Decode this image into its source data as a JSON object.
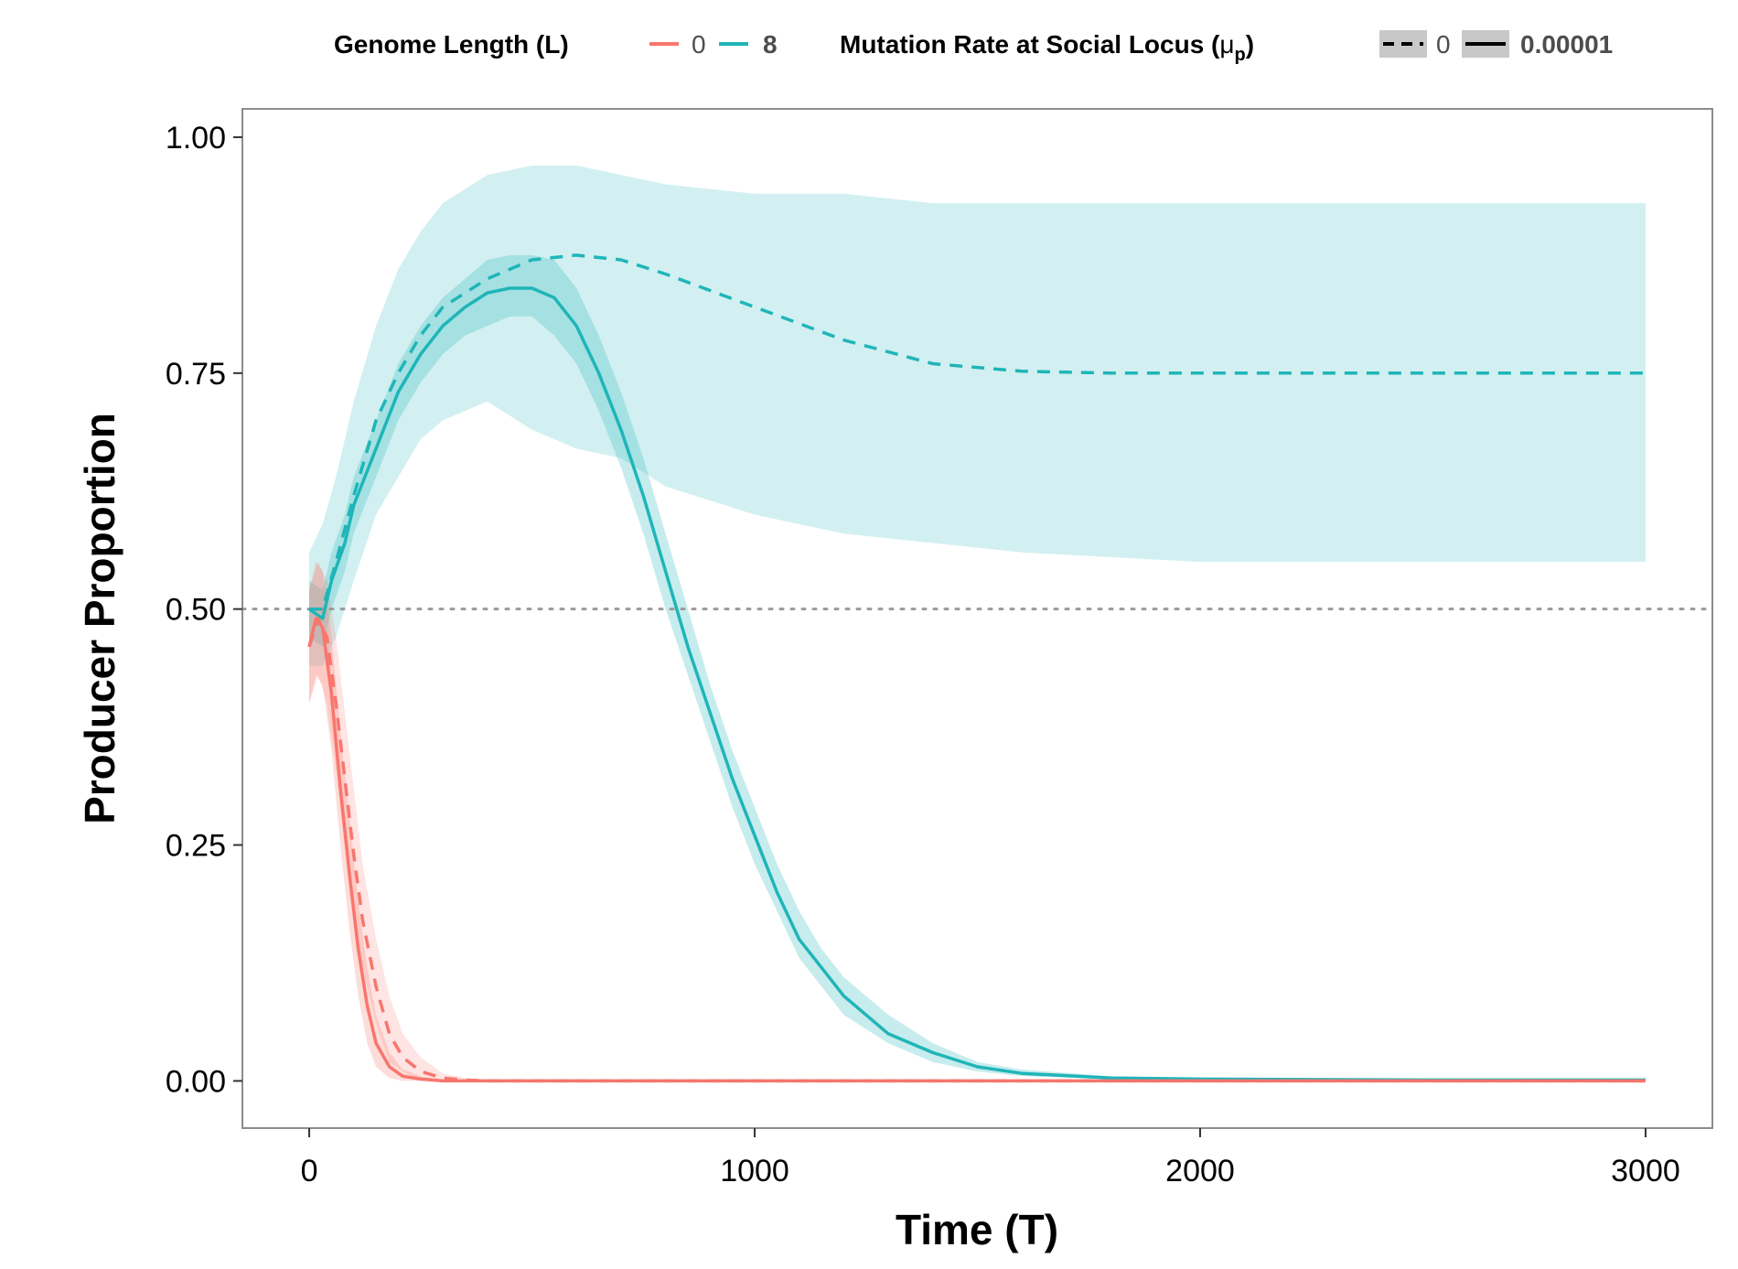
{
  "legend": {
    "genome_title": "Genome Length (L)",
    "genome_items": [
      {
        "label": "0",
        "color": "#F8766D"
      },
      {
        "label": "8",
        "color": "#1FB5B8"
      }
    ],
    "mutation_title": "Mutation Rate at Social Locus (",
    "mutation_title_mu": "μ",
    "mutation_title_sub": "p",
    "mutation_title_close": ")",
    "mutation_items": [
      {
        "label": "0",
        "linetype": "dashed"
      },
      {
        "label": "0.00001",
        "linetype": "solid"
      }
    ]
  },
  "chart_data": {
    "type": "line",
    "xlabel": "Time (T)",
    "ylabel": "Producer Proportion",
    "xlim": [
      -150,
      3150
    ],
    "ylim": [
      -0.05,
      1.03
    ],
    "x_ticks": [
      0,
      1000,
      2000,
      3000
    ],
    "x_tick_labels": [
      "0",
      "1000",
      "2000",
      "3000"
    ],
    "y_ticks": [
      0,
      0.25,
      0.5,
      0.75,
      1.0
    ],
    "y_tick_labels": [
      "0.00",
      "0.25",
      "0.50",
      "0.75",
      "1.00"
    ],
    "reference_line": {
      "y": 0.5,
      "style": "dotted",
      "color": "#999999"
    },
    "grid": false,
    "colors": {
      "L0": "#F8766D",
      "L8": "#1FB5B8",
      "band_L0": "#F8766D",
      "band_L8": "#1FB5B8"
    },
    "series": [
      {
        "genome_length": "8",
        "mutation_rate": "0",
        "linetype": "dashed",
        "color": "#1FB5B8",
        "x": [
          0,
          30,
          60,
          100,
          150,
          200,
          250,
          300,
          400,
          500,
          600,
          700,
          800,
          1000,
          1200,
          1400,
          1600,
          1800,
          2000,
          2500,
          3000
        ],
        "y": [
          0.5,
          0.5,
          0.55,
          0.62,
          0.7,
          0.75,
          0.79,
          0.82,
          0.85,
          0.87,
          0.875,
          0.87,
          0.855,
          0.82,
          0.785,
          0.76,
          0.752,
          0.75,
          0.75,
          0.75,
          0.75
        ],
        "lower": [
          0.44,
          0.44,
          0.47,
          0.53,
          0.6,
          0.64,
          0.68,
          0.7,
          0.72,
          0.69,
          0.67,
          0.66,
          0.63,
          0.6,
          0.58,
          0.57,
          0.56,
          0.555,
          0.55,
          0.55,
          0.55
        ],
        "upper": [
          0.56,
          0.59,
          0.64,
          0.72,
          0.8,
          0.86,
          0.9,
          0.93,
          0.96,
          0.97,
          0.97,
          0.96,
          0.95,
          0.94,
          0.94,
          0.93,
          0.93,
          0.93,
          0.93,
          0.93,
          0.93
        ]
      },
      {
        "genome_length": "8",
        "mutation_rate": "0.00001",
        "linetype": "solid",
        "color": "#1FB5B8",
        "x": [
          0,
          30,
          50,
          80,
          100,
          150,
          200,
          250,
          300,
          350,
          400,
          450,
          500,
          550,
          600,
          650,
          700,
          750,
          800,
          850,
          900,
          950,
          1000,
          1050,
          1100,
          1150,
          1200,
          1300,
          1400,
          1500,
          1600,
          1800,
          2000,
          2500,
          3000
        ],
        "y": [
          0.5,
          0.49,
          0.53,
          0.57,
          0.61,
          0.67,
          0.73,
          0.77,
          0.8,
          0.82,
          0.835,
          0.84,
          0.84,
          0.83,
          0.8,
          0.75,
          0.69,
          0.62,
          0.54,
          0.46,
          0.39,
          0.32,
          0.26,
          0.2,
          0.15,
          0.12,
          0.09,
          0.05,
          0.03,
          0.015,
          0.008,
          0.003,
          0.002,
          0.001,
          0.001
        ],
        "lower": [
          0.47,
          0.46,
          0.5,
          0.54,
          0.58,
          0.64,
          0.7,
          0.74,
          0.77,
          0.79,
          0.8,
          0.81,
          0.81,
          0.79,
          0.76,
          0.71,
          0.65,
          0.58,
          0.5,
          0.43,
          0.36,
          0.29,
          0.23,
          0.18,
          0.13,
          0.1,
          0.07,
          0.04,
          0.02,
          0.01,
          0.005,
          0.002,
          0.001,
          0.0,
          0.0
        ],
        "upper": [
          0.53,
          0.52,
          0.56,
          0.6,
          0.64,
          0.7,
          0.76,
          0.8,
          0.83,
          0.85,
          0.87,
          0.875,
          0.875,
          0.87,
          0.84,
          0.79,
          0.73,
          0.66,
          0.58,
          0.5,
          0.42,
          0.35,
          0.29,
          0.23,
          0.18,
          0.14,
          0.11,
          0.07,
          0.04,
          0.02,
          0.012,
          0.005,
          0.003,
          0.002,
          0.002
        ]
      },
      {
        "genome_length": "0",
        "mutation_rate": "0",
        "linetype": "dashed",
        "color": "#F8766D",
        "x": [
          0,
          20,
          40,
          60,
          80,
          100,
          120,
          150,
          180,
          210,
          250,
          300,
          350,
          400,
          1000,
          2000,
          3000
        ],
        "y": [
          0.46,
          0.49,
          0.47,
          0.4,
          0.32,
          0.24,
          0.17,
          0.1,
          0.05,
          0.025,
          0.01,
          0.003,
          0.001,
          0.0,
          0.0,
          0.0,
          0.0
        ],
        "lower": [
          0.4,
          0.43,
          0.4,
          0.33,
          0.25,
          0.18,
          0.12,
          0.06,
          0.02,
          0.01,
          0.0,
          0.0,
          0.0,
          0.0,
          0.0,
          0.0,
          0.0
        ],
        "upper": [
          0.52,
          0.55,
          0.53,
          0.47,
          0.39,
          0.31,
          0.23,
          0.15,
          0.09,
          0.05,
          0.025,
          0.008,
          0.003,
          0.001,
          0.0,
          0.0,
          0.0
        ]
      },
      {
        "genome_length": "0",
        "mutation_rate": "0.00001",
        "linetype": "solid",
        "color": "#F8766D",
        "x": [
          0,
          15,
          30,
          50,
          70,
          90,
          110,
          130,
          150,
          180,
          210,
          250,
          300,
          1000,
          2000,
          3000
        ],
        "y": [
          0.46,
          0.49,
          0.48,
          0.41,
          0.31,
          0.22,
          0.14,
          0.08,
          0.04,
          0.015,
          0.005,
          0.002,
          0.0,
          0.0,
          0.0,
          0.0
        ],
        "lower": [
          0.4,
          0.43,
          0.42,
          0.35,
          0.25,
          0.16,
          0.09,
          0.04,
          0.015,
          0.003,
          0.0,
          0.0,
          0.0,
          0.0,
          0.0,
          0.0
        ],
        "upper": [
          0.52,
          0.55,
          0.54,
          0.47,
          0.37,
          0.28,
          0.19,
          0.12,
          0.07,
          0.03,
          0.012,
          0.005,
          0.001,
          0.0,
          0.0,
          0.0
        ]
      }
    ]
  }
}
